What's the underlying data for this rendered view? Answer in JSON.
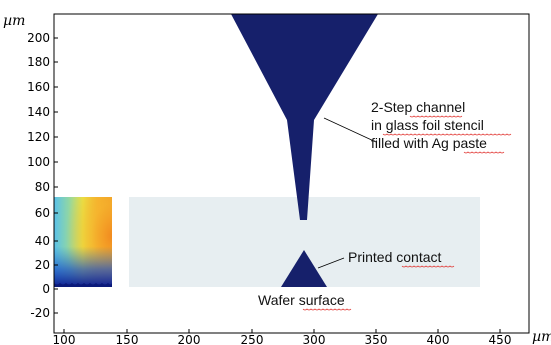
{
  "axes": {
    "x_ticks": [
      "100",
      "150",
      "200",
      "250",
      "300",
      "350",
      "400",
      "450"
    ],
    "y_ticks": [
      "-20",
      "0",
      "20",
      "40",
      "60",
      "80",
      "100",
      "120",
      "140",
      "160",
      "180",
      "200"
    ],
    "x_unit": "µm",
    "y_unit": "µm"
  },
  "annotations": {
    "channel": [
      "2-Step channel",
      "in glass foil stencil",
      "filled with Ag paste"
    ],
    "contact": "Printed contact",
    "wafer": "Wafer surface"
  },
  "colors": {
    "channel_fill": "#16206b",
    "wafer_region": "#e7eef1",
    "frame": "#000000"
  },
  "regions": [
    "2-Step channel (Ag paste)",
    "Printed contact",
    "Wafer surface",
    "Field map (colour scale)"
  ]
}
